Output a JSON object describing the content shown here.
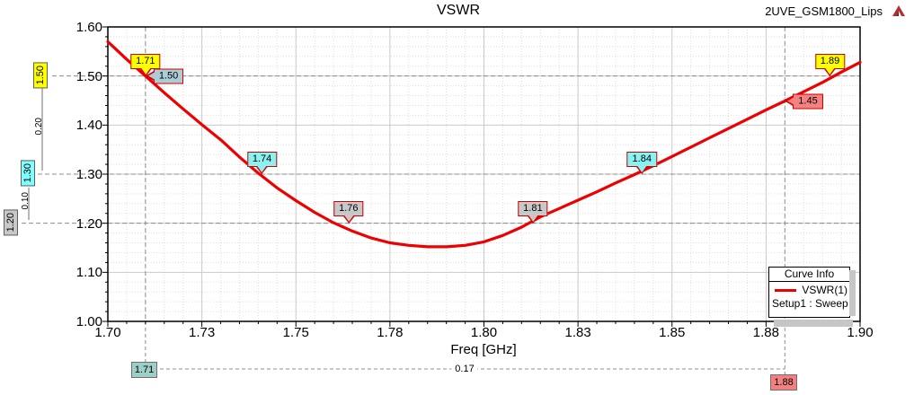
{
  "header": {
    "title": "VSWR",
    "project": "2UVE_GSM1800_Lips",
    "logo": "ansoft-logo"
  },
  "chart_data": {
    "type": "line",
    "title": "VSWR",
    "xlabel": "Freq [GHz]",
    "ylabel": "",
    "xlim": [
      1.7,
      1.9
    ],
    "ylim": [
      1.0,
      1.6
    ],
    "x_tick_values": [
      1.7,
      1.725,
      1.75,
      1.775,
      1.8,
      1.825,
      1.85,
      1.875,
      1.9
    ],
    "x_tick_labels": [
      "1.70",
      "1.73",
      "1.75",
      "1.78",
      "1.80",
      "1.83",
      "1.85",
      "1.88",
      "1.90"
    ],
    "y_tick_values": [
      1.6,
      1.5,
      1.4,
      1.3,
      1.2,
      1.1,
      1.0
    ],
    "y_tick_labels": [
      "1.60",
      "1.50",
      "1.40",
      "1.30",
      "1.20",
      "1.10",
      "1.00"
    ],
    "x_minor_step": 0.005,
    "y_minor_step": 0.02,
    "grid": true,
    "legend_position": "bottom-right",
    "series": [
      {
        "name": "VSWR(1)",
        "color": "#ee0000",
        "points": [
          [
            1.7,
            1.57
          ],
          [
            1.705,
            1.534
          ],
          [
            1.71,
            1.5
          ],
          [
            1.715,
            1.466
          ],
          [
            1.72,
            1.433
          ],
          [
            1.725,
            1.401
          ],
          [
            1.73,
            1.37
          ],
          [
            1.735,
            1.335
          ],
          [
            1.74,
            1.302
          ],
          [
            1.745,
            1.272
          ],
          [
            1.75,
            1.246
          ],
          [
            1.755,
            1.222
          ],
          [
            1.76,
            1.201
          ],
          [
            1.765,
            1.184
          ],
          [
            1.77,
            1.17
          ],
          [
            1.775,
            1.16
          ],
          [
            1.78,
            1.155
          ],
          [
            1.785,
            1.152
          ],
          [
            1.79,
            1.152
          ],
          [
            1.795,
            1.155
          ],
          [
            1.8,
            1.162
          ],
          [
            1.805,
            1.175
          ],
          [
            1.81,
            1.192
          ],
          [
            1.815,
            1.213
          ],
          [
            1.82,
            1.23
          ],
          [
            1.825,
            1.247
          ],
          [
            1.83,
            1.264
          ],
          [
            1.835,
            1.282
          ],
          [
            1.84,
            1.299
          ],
          [
            1.845,
            1.317
          ],
          [
            1.85,
            1.336
          ],
          [
            1.855,
            1.355
          ],
          [
            1.86,
            1.374
          ],
          [
            1.865,
            1.393
          ],
          [
            1.87,
            1.412
          ],
          [
            1.875,
            1.431
          ],
          [
            1.88,
            1.449
          ],
          [
            1.885,
            1.468
          ],
          [
            1.89,
            1.487
          ],
          [
            1.895,
            1.508
          ],
          [
            1.9,
            1.528
          ]
        ]
      }
    ]
  },
  "markers": {
    "curve_flags": [
      {
        "label": "1.71",
        "fill": "#ffff00",
        "direction": "down",
        "freq": 1.71,
        "value": 1.5
      },
      {
        "label": "1.50",
        "fill": "#abcdd6",
        "direction": "left",
        "freq": 1.71,
        "value": 1.5
      },
      {
        "label": "1.74",
        "fill": "#8bf2f2",
        "direction": "down",
        "freq": 1.741,
        "value": 1.3
      },
      {
        "label": "1.76",
        "fill": "#c8c8c8",
        "direction": "down",
        "freq": 1.764,
        "value": 1.2
      },
      {
        "label": "1.81",
        "fill": "#c8c8c8",
        "direction": "down",
        "freq": 1.813,
        "value": 1.2
      },
      {
        "label": "1.84",
        "fill": "#8bf2f2",
        "direction": "down",
        "freq": 1.842,
        "value": 1.3
      },
      {
        "label": "1.89",
        "fill": "#ffff00",
        "direction": "down",
        "freq": 1.892,
        "value": 1.5
      },
      {
        "label": "1.45",
        "fill": "#f48282",
        "direction": "left",
        "freq": 1.88,
        "value": 1.449
      }
    ],
    "y_axis_boxes": [
      {
        "label": "1.50",
        "fill": "#ffff00",
        "value": 1.5
      },
      {
        "label": "1.30",
        "fill": "#80ffff",
        "value": 1.3
      },
      {
        "label": "1.20",
        "fill": "#c8c8c8",
        "value": 1.2
      }
    ],
    "y_deltas": [
      {
        "label": "0.20"
      },
      {
        "label": "0.10"
      }
    ],
    "x_axis_boxes": [
      {
        "label": "1.71",
        "fill": "#9dcfc9",
        "value": 1.71
      },
      {
        "label": "1.88",
        "fill": "#f28080",
        "value": 1.88
      }
    ],
    "x_delta": {
      "label": "0.17"
    }
  },
  "legend": {
    "title": "Curve Info",
    "series_label": "VSWR(1)",
    "sweep_label": "Setup1 : Sweep",
    "swatch_color": "#ee0000"
  }
}
